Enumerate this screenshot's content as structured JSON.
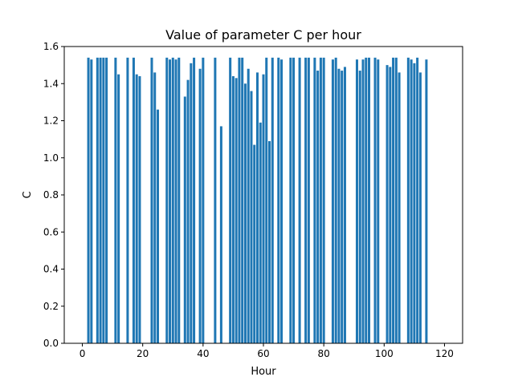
{
  "chart_data": {
    "type": "bar",
    "title": "Value of parameter C per hour",
    "xlabel": "Hour",
    "ylabel": "C",
    "xlim": [
      -6,
      126
    ],
    "ylim": [
      0,
      1.6
    ],
    "xticks": [
      0,
      20,
      40,
      60,
      80,
      100,
      120
    ],
    "yticks": [
      0.0,
      0.2,
      0.4,
      0.6,
      0.8,
      1.0,
      1.2,
      1.4,
      1.6
    ],
    "xtick_labels": [
      "0",
      "20",
      "40",
      "60",
      "80",
      "100",
      "120"
    ],
    "ytick_labels": [
      "0.0",
      "0.2",
      "0.4",
      "0.6",
      "0.8",
      "1.0",
      "1.2",
      "1.4",
      "1.6"
    ],
    "bar_color": "#1f77b4",
    "grid": false,
    "x": [
      2,
      3,
      5,
      6,
      7,
      8,
      11,
      12,
      15,
      17,
      18,
      19,
      23,
      24,
      25,
      28,
      29,
      30,
      31,
      32,
      34,
      35,
      36,
      37,
      39,
      40,
      44,
      46,
      49,
      50,
      51,
      52,
      53,
      54,
      55,
      56,
      57,
      58,
      59,
      60,
      61,
      62,
      63,
      65,
      66,
      69,
      70,
      72,
      74,
      75,
      77,
      78,
      79,
      80,
      83,
      84,
      85,
      86,
      87,
      91,
      92,
      93,
      94,
      95,
      97,
      98,
      101,
      102,
      103,
      104,
      105,
      108,
      109,
      110,
      111,
      112,
      114
    ],
    "values": [
      1.54,
      1.53,
      1.54,
      1.54,
      1.54,
      1.54,
      1.54,
      1.45,
      1.54,
      1.54,
      1.45,
      1.44,
      1.54,
      1.46,
      1.26,
      1.54,
      1.53,
      1.54,
      1.53,
      1.54,
      1.33,
      1.42,
      1.51,
      1.54,
      1.48,
      1.54,
      1.54,
      1.17,
      1.54,
      1.44,
      1.43,
      1.54,
      1.54,
      1.4,
      1.48,
      1.36,
      1.07,
      1.46,
      1.19,
      1.45,
      1.54,
      1.09,
      1.54,
      1.54,
      1.53,
      1.54,
      1.54,
      1.54,
      1.54,
      1.54,
      1.54,
      1.47,
      1.54,
      1.54,
      1.53,
      1.54,
      1.48,
      1.47,
      1.49,
      1.53,
      1.47,
      1.53,
      1.54,
      1.54,
      1.54,
      1.53,
      1.5,
      1.49,
      1.54,
      1.54,
      1.46,
      1.54,
      1.53,
      1.51,
      1.54,
      1.46,
      1.53
    ]
  }
}
